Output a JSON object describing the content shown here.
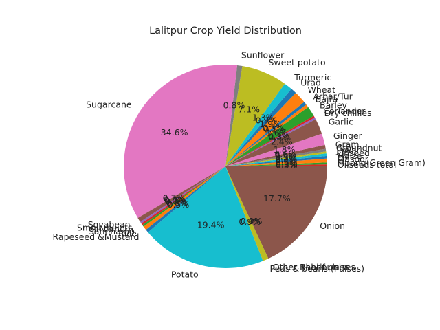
{
  "chart_data": {
    "type": "pie",
    "title": "Lalitpur Crop Yield Distribution",
    "start_angle_deg": 0,
    "direction": "counterclockwise",
    "slices": [
      {
        "label": "Oilseeds total",
        "value": 0.3,
        "pct_label": "0.3%",
        "color": "#d62728"
      },
      {
        "label": "Moong(Green Gram)",
        "value": 0.3,
        "pct_label": "0.3%",
        "color": "#2ca02c"
      },
      {
        "label": "Masoor",
        "value": 0.6,
        "pct_label": "0.6%",
        "color": "#ff7f0e"
      },
      {
        "label": "Maize",
        "value": 0.4,
        "pct_label": "0.4%",
        "color": "#1f77b4"
      },
      {
        "label": "Linseed",
        "value": 0.4,
        "pct_label": "0.4%",
        "color": "#17becf"
      },
      {
        "label": "Jowar",
        "value": 0.3,
        "pct_label": "0.3%",
        "color": "#bcbd22"
      },
      {
        "label": "Groundnut",
        "value": 0.4,
        "pct_label": "0.4%",
        "color": "#7f7f7f"
      },
      {
        "label": "Gram",
        "value": 0.6,
        "pct_label": "0.6%",
        "color": "#8c564b"
      },
      {
        "label": "Ginger",
        "value": 1.8,
        "pct_label": "1.8%",
        "color": "#e377c2"
      },
      {
        "label": "Garlic",
        "value": 2.4,
        "pct_label": "2.4%",
        "color": "#8c564b"
      },
      {
        "label": "Dry chillies",
        "value": 0.3,
        "pct_label": "0.3%",
        "color": "#9467bd"
      },
      {
        "label": "Coriander",
        "value": 0.3,
        "pct_label": "0.3%",
        "color": "#d62728"
      },
      {
        "label": "Barley",
        "value": 1.6,
        "pct_label": "1.6%",
        "color": "#2ca02c"
      },
      {
        "label": "Bajra",
        "value": 0.5,
        "pct_label": "0.5%",
        "color": "#ff7f0e"
      },
      {
        "label": "Arhar/Tur",
        "value": 0.5,
        "pct_label": "0.5%",
        "color": "#1f77b4"
      },
      {
        "label": "Wheat",
        "value": 1.9,
        "pct_label": "1.9%",
        "color": "#ff7f0e"
      },
      {
        "label": "Urad",
        "value": 0.9,
        "pct_label": "0.9%",
        "color": "#1f77b4"
      },
      {
        "label": "Turmeric",
        "value": 1.3,
        "pct_label": "1.3%",
        "color": "#17becf"
      },
      {
        "label": "Sweet potato",
        "value": 7.1,
        "pct_label": "7.1%",
        "color": "#bcbd22"
      },
      {
        "label": "Sunflower",
        "value": 0.8,
        "pct_label": "0.8%",
        "color": "#7f7f7f"
      },
      {
        "label": "Sugarcane",
        "value": 34.6,
        "pct_label": "34.6%",
        "color": "#e377c2"
      },
      {
        "label": "Soyabean",
        "value": 0.7,
        "pct_label": "0.7%",
        "color": "#8c564b"
      },
      {
        "label": "Small millets",
        "value": 0.3,
        "pct_label": "0.3%",
        "color": "#9467bd"
      },
      {
        "label": "Sesamum",
        "value": 0.3,
        "pct_label": "0.3%",
        "color": "#d62728"
      },
      {
        "label": "Sannhamp",
        "value": 0.3,
        "pct_label": "0.3%",
        "color": "#2ca02c"
      },
      {
        "label": "Rice",
        "value": 0.6,
        "pct_label": "0.6%",
        "color": "#ff7f0e"
      },
      {
        "label": "Rapeseed &Mustard",
        "value": 0.5,
        "pct_label": "0.5%",
        "color": "#1f77b4"
      },
      {
        "label": "Potato",
        "value": 19.4,
        "pct_label": "19.4%",
        "color": "#17becf"
      },
      {
        "label": "Peas & beans (Pulses)",
        "value": 0.9,
        "pct_label": "0.9%",
        "color": "#bcbd22"
      },
      {
        "label": "Other Rabi pulses",
        "value": 0.0,
        "pct_label": "0.0%",
        "color": "#7f7f7f"
      },
      {
        "label": "Other Kharif pulses",
        "value": 0.0,
        "pct_label": "0.0%",
        "color": "#e377c2"
      },
      {
        "label": "Onion",
        "value": 17.7,
        "pct_label": "17.7%",
        "color": "#8c564b"
      }
    ]
  }
}
